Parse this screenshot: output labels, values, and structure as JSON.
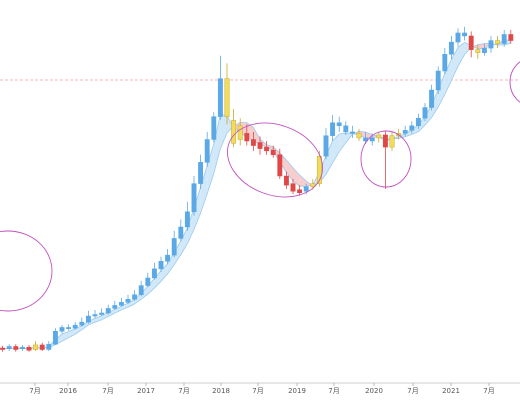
{
  "chart_data": {
    "type": "candlestick",
    "title": "",
    "xlabel": "",
    "ylabel": "",
    "x_ticks": [
      "7月",
      "2016",
      "7月",
      "2017",
      "7月",
      "2018",
      "7月",
      "2019",
      "7月",
      "2020",
      "7月",
      "2021",
      "7月"
    ],
    "grid": false,
    "legend": "none",
    "reference_line": {
      "style": "dashed",
      "color": "#f0a0a0"
    },
    "colors": {
      "up": "#5aa9e6",
      "down": "#e04848",
      "neutral": "#f2dc5d",
      "ma_band_up": "#cce6f7",
      "ma_band_down": "#f6c9c9",
      "highlight_circle": "#c052c0"
    },
    "series": [
      {
        "o": 50,
        "c": 45,
        "h": 54,
        "l": 42,
        "color": "down"
      },
      {
        "o": 46,
        "c": 44,
        "h": 49,
        "l": 41,
        "color": "down"
      },
      {
        "o": 45,
        "c": 48,
        "h": 51,
        "l": 42,
        "color": "up"
      },
      {
        "o": 48,
        "c": 44,
        "h": 51,
        "l": 41,
        "color": "down"
      },
      {
        "o": 45,
        "c": 47,
        "h": 50,
        "l": 42,
        "color": "up"
      },
      {
        "o": 47,
        "c": 43,
        "h": 50,
        "l": 41,
        "color": "down"
      },
      {
        "o": 44,
        "c": 50,
        "h": 55,
        "l": 42,
        "color": "neutral"
      },
      {
        "o": 50,
        "c": 44,
        "h": 53,
        "l": 42,
        "color": "down"
      },
      {
        "o": 44,
        "c": 51,
        "h": 55,
        "l": 42,
        "color": "up"
      },
      {
        "o": 51,
        "c": 68,
        "h": 72,
        "l": 50,
        "color": "up"
      },
      {
        "o": 68,
        "c": 73,
        "h": 76,
        "l": 65,
        "color": "up"
      },
      {
        "o": 73,
        "c": 72,
        "h": 77,
        "l": 69,
        "color": "up"
      },
      {
        "o": 72,
        "c": 76,
        "h": 80,
        "l": 70,
        "color": "up"
      },
      {
        "o": 76,
        "c": 80,
        "h": 86,
        "l": 74,
        "color": "up"
      },
      {
        "o": 80,
        "c": 88,
        "h": 95,
        "l": 78,
        "color": "up"
      },
      {
        "o": 88,
        "c": 90,
        "h": 96,
        "l": 85,
        "color": "up"
      },
      {
        "o": 90,
        "c": 92,
        "h": 98,
        "l": 88,
        "color": "up"
      },
      {
        "o": 92,
        "c": 98,
        "h": 103,
        "l": 90,
        "color": "up"
      },
      {
        "o": 98,
        "c": 102,
        "h": 108,
        "l": 96,
        "color": "up"
      },
      {
        "o": 102,
        "c": 106,
        "h": 112,
        "l": 100,
        "color": "up"
      },
      {
        "o": 106,
        "c": 110,
        "h": 116,
        "l": 104,
        "color": "up"
      },
      {
        "o": 110,
        "c": 116,
        "h": 122,
        "l": 108,
        "color": "up"
      },
      {
        "o": 116,
        "c": 128,
        "h": 134,
        "l": 114,
        "color": "up"
      },
      {
        "o": 128,
        "c": 138,
        "h": 145,
        "l": 126,
        "color": "up"
      },
      {
        "o": 138,
        "c": 150,
        "h": 158,
        "l": 136,
        "color": "up"
      },
      {
        "o": 150,
        "c": 160,
        "h": 166,
        "l": 146,
        "color": "up"
      },
      {
        "o": 160,
        "c": 168,
        "h": 176,
        "l": 156,
        "color": "up"
      },
      {
        "o": 168,
        "c": 190,
        "h": 200,
        "l": 165,
        "color": "up"
      },
      {
        "o": 190,
        "c": 205,
        "h": 215,
        "l": 186,
        "color": "up"
      },
      {
        "o": 205,
        "c": 225,
        "h": 238,
        "l": 200,
        "color": "up"
      },
      {
        "o": 225,
        "c": 262,
        "h": 272,
        "l": 220,
        "color": "up"
      },
      {
        "o": 262,
        "c": 290,
        "h": 300,
        "l": 255,
        "color": "up"
      },
      {
        "o": 290,
        "c": 320,
        "h": 330,
        "l": 284,
        "color": "up"
      },
      {
        "o": 320,
        "c": 350,
        "h": 356,
        "l": 316,
        "color": "up"
      },
      {
        "o": 350,
        "c": 400,
        "h": 430,
        "l": 346,
        "color": "up"
      },
      {
        "o": 400,
        "c": 350,
        "h": 420,
        "l": 340,
        "color": "neutral"
      },
      {
        "o": 345,
        "c": 315,
        "h": 360,
        "l": 310,
        "color": "neutral"
      },
      {
        "o": 338,
        "c": 320,
        "h": 348,
        "l": 312,
        "color": "neutral"
      },
      {
        "o": 328,
        "c": 318,
        "h": 340,
        "l": 312,
        "color": "down"
      },
      {
        "o": 320,
        "c": 312,
        "h": 330,
        "l": 305,
        "color": "down"
      },
      {
        "o": 316,
        "c": 308,
        "h": 324,
        "l": 300,
        "color": "down"
      },
      {
        "o": 310,
        "c": 305,
        "h": 318,
        "l": 300,
        "color": "down"
      },
      {
        "o": 306,
        "c": 300,
        "h": 312,
        "l": 296,
        "color": "down"
      },
      {
        "o": 300,
        "c": 272,
        "h": 308,
        "l": 268,
        "color": "down"
      },
      {
        "o": 272,
        "c": 260,
        "h": 278,
        "l": 255,
        "color": "down"
      },
      {
        "o": 262,
        "c": 252,
        "h": 268,
        "l": 248,
        "color": "down"
      },
      {
        "o": 254,
        "c": 250,
        "h": 260,
        "l": 246,
        "color": "down"
      },
      {
        "o": 252,
        "c": 258,
        "h": 262,
        "l": 248,
        "color": "up"
      },
      {
        "o": 258,
        "c": 262,
        "h": 268,
        "l": 254,
        "color": "neutral"
      },
      {
        "o": 262,
        "c": 298,
        "h": 305,
        "l": 258,
        "color": "neutral"
      },
      {
        "o": 298,
        "c": 325,
        "h": 335,
        "l": 294,
        "color": "up"
      },
      {
        "o": 325,
        "c": 342,
        "h": 352,
        "l": 318,
        "color": "up"
      },
      {
        "o": 342,
        "c": 338,
        "h": 350,
        "l": 330,
        "color": "up"
      },
      {
        "o": 338,
        "c": 330,
        "h": 344,
        "l": 326,
        "color": "up"
      },
      {
        "o": 330,
        "c": 328,
        "h": 338,
        "l": 322,
        "color": "up"
      },
      {
        "o": 328,
        "c": 322,
        "h": 334,
        "l": 318,
        "color": "neutral"
      },
      {
        "o": 322,
        "c": 318,
        "h": 330,
        "l": 314,
        "color": "up"
      },
      {
        "o": 318,
        "c": 322,
        "h": 328,
        "l": 312,
        "color": "up"
      },
      {
        "o": 322,
        "c": 326,
        "h": 330,
        "l": 316,
        "color": "neutral"
      },
      {
        "o": 326,
        "c": 310,
        "h": 332,
        "l": 255,
        "color": "down"
      },
      {
        "o": 310,
        "c": 325,
        "h": 330,
        "l": 305,
        "color": "neutral"
      },
      {
        "o": 325,
        "c": 328,
        "h": 334,
        "l": 320,
        "color": "neutral"
      },
      {
        "o": 328,
        "c": 332,
        "h": 338,
        "l": 324,
        "color": "up"
      },
      {
        "o": 332,
        "c": 338,
        "h": 344,
        "l": 328,
        "color": "up"
      },
      {
        "o": 338,
        "c": 348,
        "h": 354,
        "l": 334,
        "color": "up"
      },
      {
        "o": 348,
        "c": 362,
        "h": 368,
        "l": 344,
        "color": "up"
      },
      {
        "o": 362,
        "c": 385,
        "h": 392,
        "l": 358,
        "color": "up"
      },
      {
        "o": 385,
        "c": 410,
        "h": 416,
        "l": 380,
        "color": "up"
      },
      {
        "o": 410,
        "c": 432,
        "h": 440,
        "l": 406,
        "color": "up"
      },
      {
        "o": 432,
        "c": 448,
        "h": 456,
        "l": 426,
        "color": "up"
      },
      {
        "o": 448,
        "c": 460,
        "h": 466,
        "l": 442,
        "color": "up"
      },
      {
        "o": 460,
        "c": 456,
        "h": 468,
        "l": 450,
        "color": "up"
      },
      {
        "o": 456,
        "c": 438,
        "h": 462,
        "l": 428,
        "color": "down"
      },
      {
        "o": 438,
        "c": 434,
        "h": 444,
        "l": 426,
        "color": "neutral"
      },
      {
        "o": 434,
        "c": 440,
        "h": 446,
        "l": 430,
        "color": "up"
      },
      {
        "o": 440,
        "c": 450,
        "h": 456,
        "l": 434,
        "color": "up"
      },
      {
        "o": 450,
        "c": 446,
        "h": 456,
        "l": 440,
        "color": "neutral"
      },
      {
        "o": 446,
        "c": 458,
        "h": 464,
        "l": 442,
        "color": "up"
      },
      {
        "o": 458,
        "c": 450,
        "h": 464,
        "l": 446,
        "color": "down"
      }
    ]
  }
}
